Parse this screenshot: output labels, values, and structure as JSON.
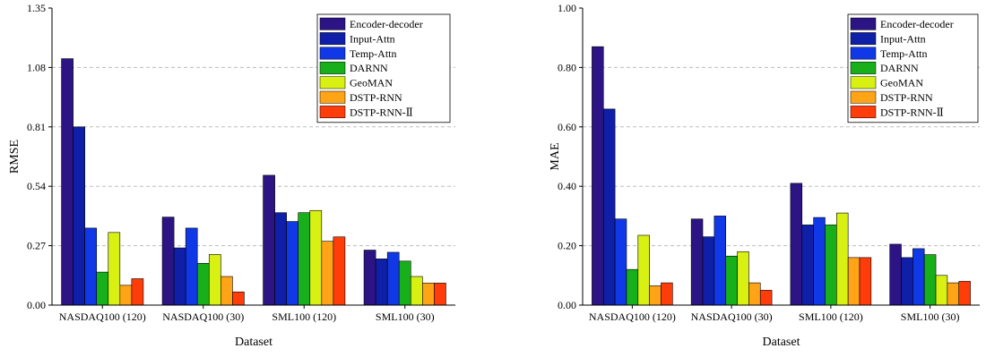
{
  "legend_labels": [
    "Encoder-decoder",
    "Input-Attn",
    "Temp-Attn",
    "DARNN",
    "GeoMAN",
    "DSTP-RNN",
    "DSTP-RNN-Ⅱ"
  ],
  "series_colors": [
    "#2c1485",
    "#0f1fa8",
    "#1038e6",
    "#18b01a",
    "#d8f012",
    "#ffa416",
    "#ff3d0a"
  ],
  "chart_data": [
    {
      "type": "bar",
      "ylabel": "RMSE",
      "xlabel": "Dataset",
      "ylim": [
        0,
        1.35
      ],
      "yticks": [
        "0.00",
        "0.27",
        "0.54",
        "0.81",
        "1.08",
        "1.35"
      ],
      "grid": "horizontal dashed",
      "legend_position": "top-right",
      "categories": [
        "NASDAQ100 (120)",
        "NASDAQ100 (30)",
        "SML100 (120)",
        "SML100 (30)"
      ],
      "series": [
        {
          "name": "Encoder-decoder",
          "values": [
            1.12,
            0.4,
            0.59,
            0.25
          ]
        },
        {
          "name": "Input-Attn",
          "values": [
            0.81,
            0.26,
            0.42,
            0.21
          ]
        },
        {
          "name": "Temp-Attn",
          "values": [
            0.35,
            0.35,
            0.38,
            0.24
          ]
        },
        {
          "name": "DARNN",
          "values": [
            0.15,
            0.19,
            0.42,
            0.2
          ]
        },
        {
          "name": "GeoMAN",
          "values": [
            0.33,
            0.23,
            0.43,
            0.13
          ]
        },
        {
          "name": "DSTP-RNN",
          "values": [
            0.09,
            0.13,
            0.29,
            0.1
          ]
        },
        {
          "name": "DSTP-RNN-Ⅱ",
          "values": [
            0.12,
            0.06,
            0.31,
            0.1
          ]
        }
      ]
    },
    {
      "type": "bar",
      "ylabel": "MAE",
      "xlabel": "Dataset",
      "ylim": [
        0,
        1.0
      ],
      "yticks": [
        "0.00",
        "0.20",
        "0.40",
        "0.60",
        "0.80",
        "1.00"
      ],
      "grid": "horizontal dashed",
      "legend_position": "top-right",
      "categories": [
        "NASDAQ100 (120)",
        "NASDAQ100 (30)",
        "SML100 (120)",
        "SML100 (30)"
      ],
      "series": [
        {
          "name": "Encoder-decoder",
          "values": [
            0.87,
            0.29,
            0.41,
            0.205
          ]
        },
        {
          "name": "Input-Attn",
          "values": [
            0.66,
            0.23,
            0.27,
            0.16
          ]
        },
        {
          "name": "Temp-Attn",
          "values": [
            0.29,
            0.3,
            0.295,
            0.19
          ]
        },
        {
          "name": "DARNN",
          "values": [
            0.12,
            0.165,
            0.27,
            0.17
          ]
        },
        {
          "name": "GeoMAN",
          "values": [
            0.235,
            0.18,
            0.31,
            0.1
          ]
        },
        {
          "name": "DSTP-RNN",
          "values": [
            0.065,
            0.075,
            0.16,
            0.075
          ]
        },
        {
          "name": "DSTP-RNN-Ⅱ",
          "values": [
            0.075,
            0.05,
            0.16,
            0.08
          ]
        }
      ]
    }
  ]
}
